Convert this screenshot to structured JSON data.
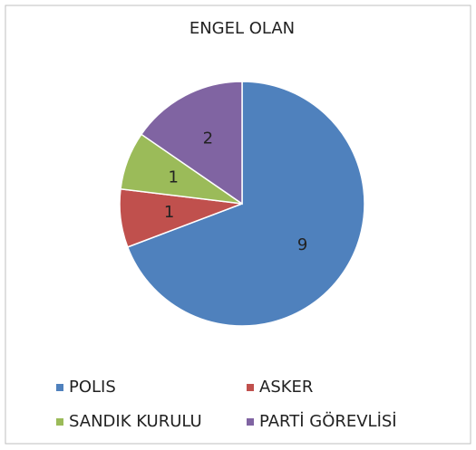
{
  "chart_data": {
    "type": "pie",
    "title": "ENGEL OLAN",
    "categories": [
      "POLIS",
      "ASKER",
      "SANDIK KURULU",
      "PARTİ GÖREVLİSİ"
    ],
    "values": [
      9,
      1,
      1,
      2
    ],
    "colors": [
      "#4f81bd",
      "#c0504d",
      "#9bbb59",
      "#8064a2"
    ],
    "legend": "bottom"
  }
}
